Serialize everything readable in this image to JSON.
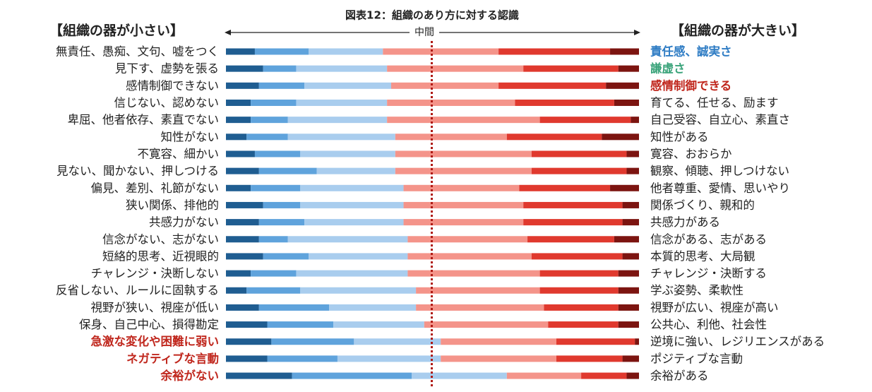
{
  "chart_data": {
    "type": "diverging-stacked-bar",
    "title": "図表12：組織のあり方に対する認識",
    "left_header": "【組織の器が小さい】",
    "right_header": "【組織の器が大きい】",
    "center_label": "中間",
    "xlim": [
      0,
      100
    ],
    "categories": [
      "無責任、愚痴、文句、嘘をつく",
      "見下す、虚勢を張る",
      "感情制御できない",
      "信じない、認めない",
      "卑屈、他者依存、素直でない",
      "知性がない",
      "不寛容、細かい",
      "見ない、聞かない、押しつける",
      "偏見、差別、礼節がない",
      "狭い関係、排他的",
      "共感力がない",
      "信念がない、志がない",
      "短絡的思考、近視眼的",
      "チャレンジ・決断しない",
      "反省しない、ルールに固執する",
      "視野が狭い、視座が低い",
      "保身、自己中心、損得勘定",
      "急激な変化や困難に弱い",
      "ネガティブな言動",
      "余裕がない"
    ],
    "category_colors": [
      "#222",
      "#222",
      "#222",
      "#222",
      "#222",
      "#222",
      "#222",
      "#222",
      "#222",
      "#222",
      "#222",
      "#222",
      "#222",
      "#222",
      "#222",
      "#222",
      "#222",
      "#c0271d",
      "#c0271d",
      "#c0271d"
    ],
    "right_categories": [
      "責任感、誠実さ",
      "謙虚さ",
      "感情制御できる",
      "育てる、任せる、励ます",
      "自己受容、自立心、素直さ",
      "知性がある",
      "寛容、おおらか",
      "観察、傾聴、押しつけない",
      "他者尊重、愛情、思いやり",
      "関係づくり、親和的",
      "共感力がある",
      "信念がある、志がある",
      "本質的思考、大局観",
      "チャレンジ・決断する",
      "学ぶ姿勢、柔軟性",
      "視野が広い、視座が高い",
      "公共心、利他、社会性",
      "逆境に強い、レジリエンスがある",
      "ポジティブな言動",
      "余裕がある"
    ],
    "right_category_colors": [
      "#2e7cc4",
      "#3aa37a",
      "#c0271d",
      "#222",
      "#222",
      "#222",
      "#222",
      "#222",
      "#222",
      "#222",
      "#222",
      "#222",
      "#222",
      "#222",
      "#222",
      "#222",
      "#222",
      "#222",
      "#222",
      "#222"
    ],
    "series": [
      {
        "color": "#1f5d91",
        "values": [
          7,
          9,
          8,
          6,
          6,
          5,
          7,
          8,
          6,
          9,
          8,
          8,
          9,
          6,
          5,
          8,
          10,
          11,
          10,
          16
        ]
      },
      {
        "color": "#5fa3dc",
        "values": [
          13,
          8,
          11,
          11,
          9,
          10,
          11,
          14,
          12,
          9,
          11,
          7,
          11,
          11,
          13,
          17,
          16,
          20,
          17,
          29
        ]
      },
      {
        "color": "#a9cdee",
        "values": [
          18,
          22,
          21,
          22,
          24,
          26,
          23,
          19,
          25,
          25,
          24,
          29,
          24,
          27,
          28,
          21,
          22,
          21,
          25,
          23
        ]
      },
      {
        "color": "#f4948a",
        "values": [
          28,
          33,
          26,
          31,
          37,
          27,
          33,
          33,
          28,
          29,
          29,
          29,
          30,
          32,
          30,
          31,
          30,
          28,
          28,
          18
        ]
      },
      {
        "color": "#e0392e",
        "values": [
          27,
          23,
          26,
          24,
          22,
          23,
          23,
          23,
          22,
          24,
          24,
          21,
          22,
          19,
          19,
          18,
          17,
          19,
          16,
          11
        ]
      },
      {
        "color": "#7c1410",
        "values": [
          7,
          5,
          8,
          6,
          2,
          9,
          3,
          3,
          7,
          4,
          4,
          6,
          4,
          5,
          5,
          5,
          5,
          1,
          4,
          3
        ]
      }
    ]
  }
}
